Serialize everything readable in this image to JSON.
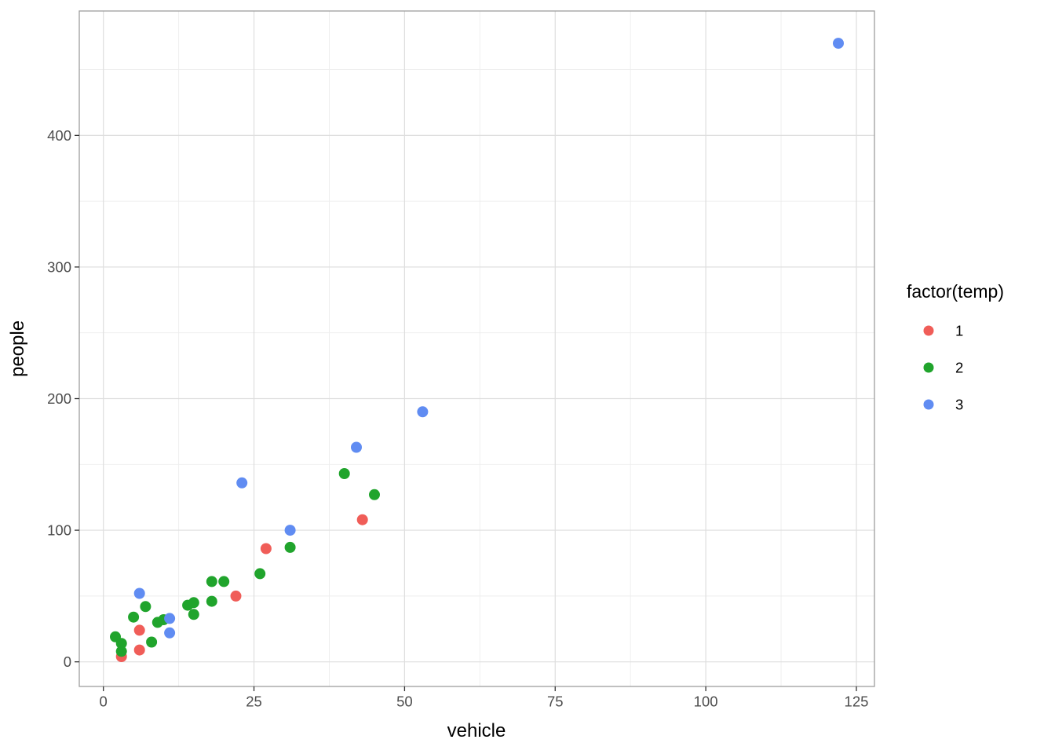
{
  "chart_data": {
    "type": "scatter",
    "title": "",
    "xlabel": "vehicle",
    "ylabel": "people",
    "xlim": [
      -4,
      128
    ],
    "ylim": [
      -18.7,
      494.5
    ],
    "x_ticks": [
      0,
      25,
      50,
      75,
      100,
      125
    ],
    "y_ticks": [
      0,
      100,
      200,
      300,
      400
    ],
    "x_minor_ticks": [
      12.5,
      37.5,
      62.5,
      87.5,
      112.5
    ],
    "y_minor_ticks": [
      50,
      150,
      250,
      350,
      450
    ],
    "grid": "on",
    "legend": {
      "title": "factor(temp)",
      "position": "right",
      "entries": [
        {
          "label": "1",
          "color": "#F05D58"
        },
        {
          "label": "2",
          "color": "#20A42C"
        },
        {
          "label": "3",
          "color": "#608CF2"
        }
      ]
    },
    "series": [
      {
        "name": "1",
        "color": "#F05D58",
        "points": [
          [
            3,
            4
          ],
          [
            6,
            9
          ],
          [
            6,
            24
          ],
          [
            22,
            50
          ],
          [
            27,
            86
          ],
          [
            43,
            108
          ]
        ]
      },
      {
        "name": "2",
        "color": "#20A42C",
        "points": [
          [
            2,
            19
          ],
          [
            3,
            8
          ],
          [
            3,
            14
          ],
          [
            5,
            34
          ],
          [
            7,
            42
          ],
          [
            8,
            15
          ],
          [
            9,
            30
          ],
          [
            10,
            32
          ],
          [
            14,
            43
          ],
          [
            15,
            36
          ],
          [
            15,
            45
          ],
          [
            18,
            46
          ],
          [
            18,
            61
          ],
          [
            20,
            61
          ],
          [
            26,
            67
          ],
          [
            31,
            87
          ],
          [
            40,
            143
          ],
          [
            45,
            127
          ]
        ]
      },
      {
        "name": "3",
        "color": "#608CF2",
        "points": [
          [
            6,
            52
          ],
          [
            11,
            22
          ],
          [
            11,
            33
          ],
          [
            23,
            136
          ],
          [
            31,
            100
          ],
          [
            42,
            163
          ],
          [
            53,
            190
          ],
          [
            122,
            470
          ]
        ]
      }
    ],
    "style_colors": {
      "panel_background": "#ffffff",
      "panel_border": "#9e9e9e",
      "grid_major": "#dedede",
      "grid_minor": "#ededed",
      "tick_mark": "#333333",
      "tick_label": "#4d4d4d",
      "axis_title": "#000000"
    }
  }
}
